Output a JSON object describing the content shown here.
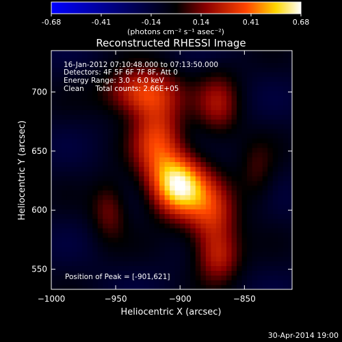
{
  "chart_data": {
    "type": "heatmap",
    "title": "Reconstructed RHESSI Image",
    "xlabel": "Heliocentric X (arcsec)",
    "ylabel": "Heliocentric Y (arcsec)",
    "xlim": [
      -1000,
      -813
    ],
    "ylim": [
      533,
      735
    ],
    "x_ticks": [
      -1000,
      -950,
      -900,
      -850
    ],
    "y_ticks": [
      550,
      600,
      650,
      700
    ],
    "annotations": [
      "16-Jan-2012 07:10:48.000 to 07:13:50.000",
      "Detectors: 4F 5F 6F 7F 8F, Att 0",
      "Energy Range: 3.0 - 6.0 keV",
      "Clean     Total counts: 2.66E+05"
    ],
    "peak_label": "Position of Peak = [-901,621]",
    "peak": {
      "x": -901,
      "y": 621,
      "value": 0.68
    },
    "colorbar": {
      "ticks": [
        "-0.68",
        "-0.41",
        "-0.14",
        "0.14",
        "0.41",
        "0.68"
      ],
      "units_label": "(photons cm⁻² s⁻¹ asec⁻²)",
      "range": [
        -0.68,
        0.68
      ],
      "stops": [
        "#0000ff",
        "#000000",
        "#8b0000",
        "#ff4500",
        "#ffd700",
        "#ffffff"
      ]
    },
    "sources": [
      {
        "x": -901,
        "y": 621,
        "amp": 0.7,
        "sx": 15,
        "sy": 18
      },
      {
        "x": -918,
        "y": 660,
        "amp": 0.4,
        "sx": 14,
        "sy": 25
      },
      {
        "x": -930,
        "y": 700,
        "amp": 0.42,
        "sx": 20,
        "sy": 14
      },
      {
        "x": -875,
        "y": 595,
        "amp": 0.35,
        "sx": 14,
        "sy": 22
      },
      {
        "x": -870,
        "y": 560,
        "amp": 0.28,
        "sx": 12,
        "sy": 15
      },
      {
        "x": -955,
        "y": 600,
        "amp": 0.22,
        "sx": 10,
        "sy": 18
      },
      {
        "x": -870,
        "y": 690,
        "amp": 0.26,
        "sx": 12,
        "sy": 20
      },
      {
        "x": -840,
        "y": 630,
        "amp": 0.15,
        "sx": 10,
        "sy": 20
      }
    ],
    "background": -0.1
  },
  "footer": {
    "timestamp": "30-Apr-2014 19:00"
  }
}
